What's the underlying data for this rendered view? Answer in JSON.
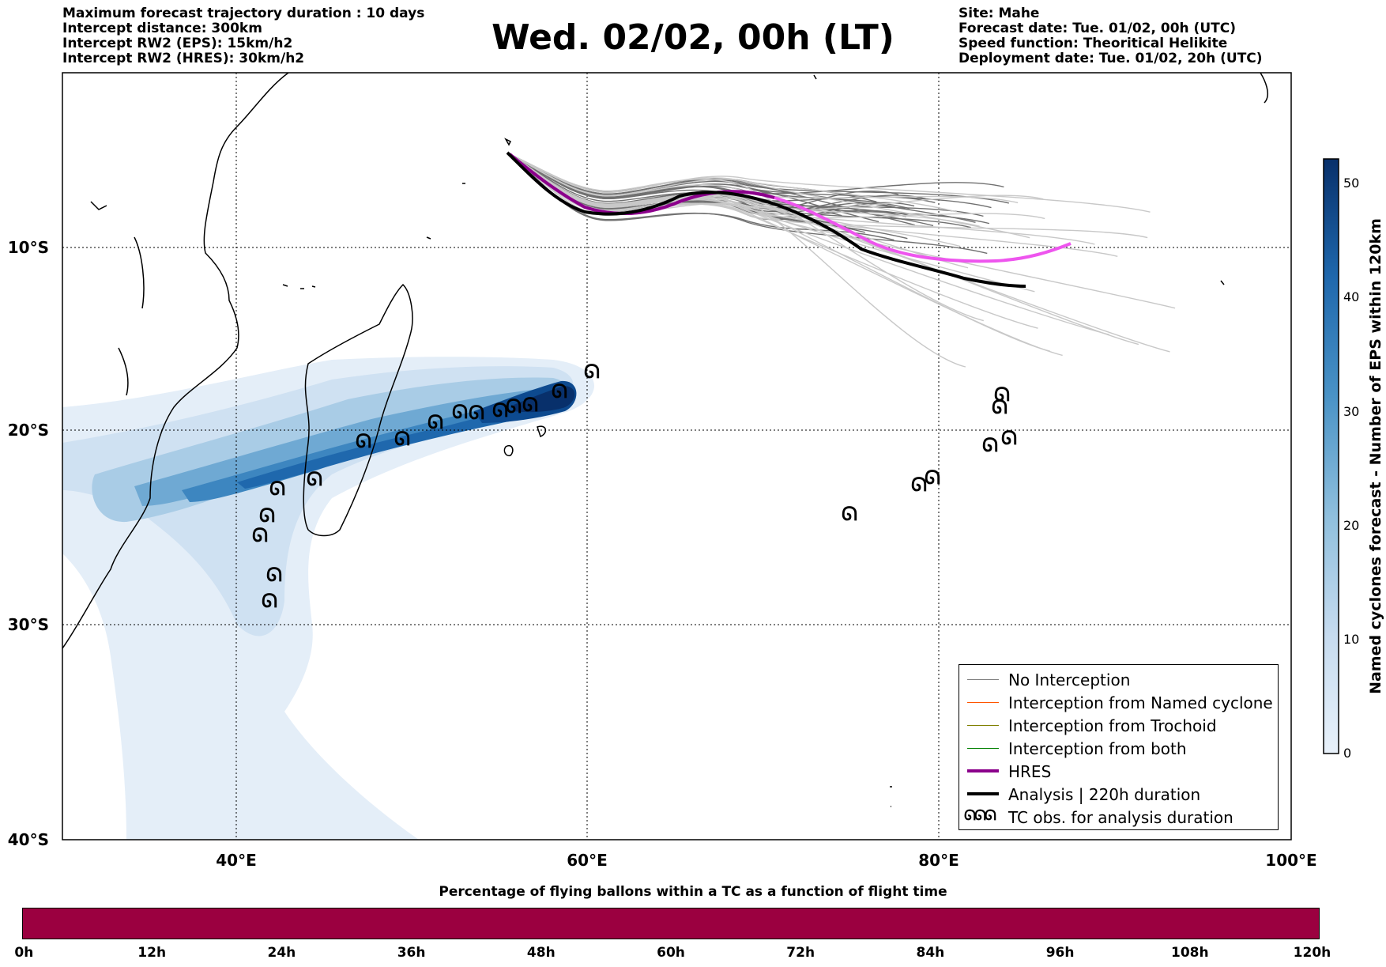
{
  "header": {
    "left": [
      "Maximum forecast trajectory duration : 10 days",
      "Intercept distance: 300km",
      "Intercept RW2 (EPS):  15km/h2",
      "Intercept RW2 (HRES): 30km/h2"
    ],
    "title": "Wed. 02/02, 00h (LT)",
    "right": [
      "Site: Mahe",
      "Forecast date: Tue. 01/02, 00h (UTC)",
      "Speed function: Theoritical Helikite",
      "Deployment date: Tue. 01/02, 20h (UTC)"
    ]
  },
  "map": {
    "lon_ticks": [
      "40°E",
      "60°E",
      "80°E",
      "100°E"
    ],
    "lat_ticks": [
      "10°S",
      "20°S",
      "30°S",
      "40°S"
    ],
    "lon_range": [
      30,
      100
    ],
    "lat_range": [
      -40,
      -1
    ],
    "colors": {
      "no_interception": "#808080",
      "named_cyclone": "#ff5500",
      "trochoid": "#808000",
      "both": "#008000",
      "hres": "#8b008b",
      "hres_forecast": "#ee55ee",
      "analysis": "#000000"
    }
  },
  "legend": {
    "items": [
      {
        "label": "No Interception",
        "color": "#808080",
        "style": "thin"
      },
      {
        "label": "Interception from Named cyclone",
        "color": "#ff5500",
        "style": "thin"
      },
      {
        "label": "Interception from Trochoid",
        "color": "#808000",
        "style": "thin"
      },
      {
        "label": "Interception from both",
        "color": "#008000",
        "style": "thin"
      },
      {
        "label": "HRES",
        "color": "#8b008b",
        "style": "thick"
      },
      {
        "label": "Analysis | 220h duration",
        "color": "#000000",
        "style": "thick"
      },
      {
        "label": "TC obs. for analysis duration",
        "color": "#000000",
        "style": "symbol"
      }
    ]
  },
  "colorbar": {
    "label": "Named cyclones forecast - Number of EPS within 120km",
    "ticks": [
      "0",
      "10",
      "20",
      "30",
      "40",
      "50"
    ],
    "range": [
      0,
      52
    ]
  },
  "tc_symbol": "ᘏ",
  "time_bar": {
    "title": "Percentage of flying ballons within a TC as a function of flight time",
    "ticks": [
      "0h",
      "12h",
      "24h",
      "36h",
      "48h",
      "60h",
      "72h",
      "84h",
      "96h",
      "108h",
      "120h"
    ],
    "fill_color": "#9b0040"
  }
}
